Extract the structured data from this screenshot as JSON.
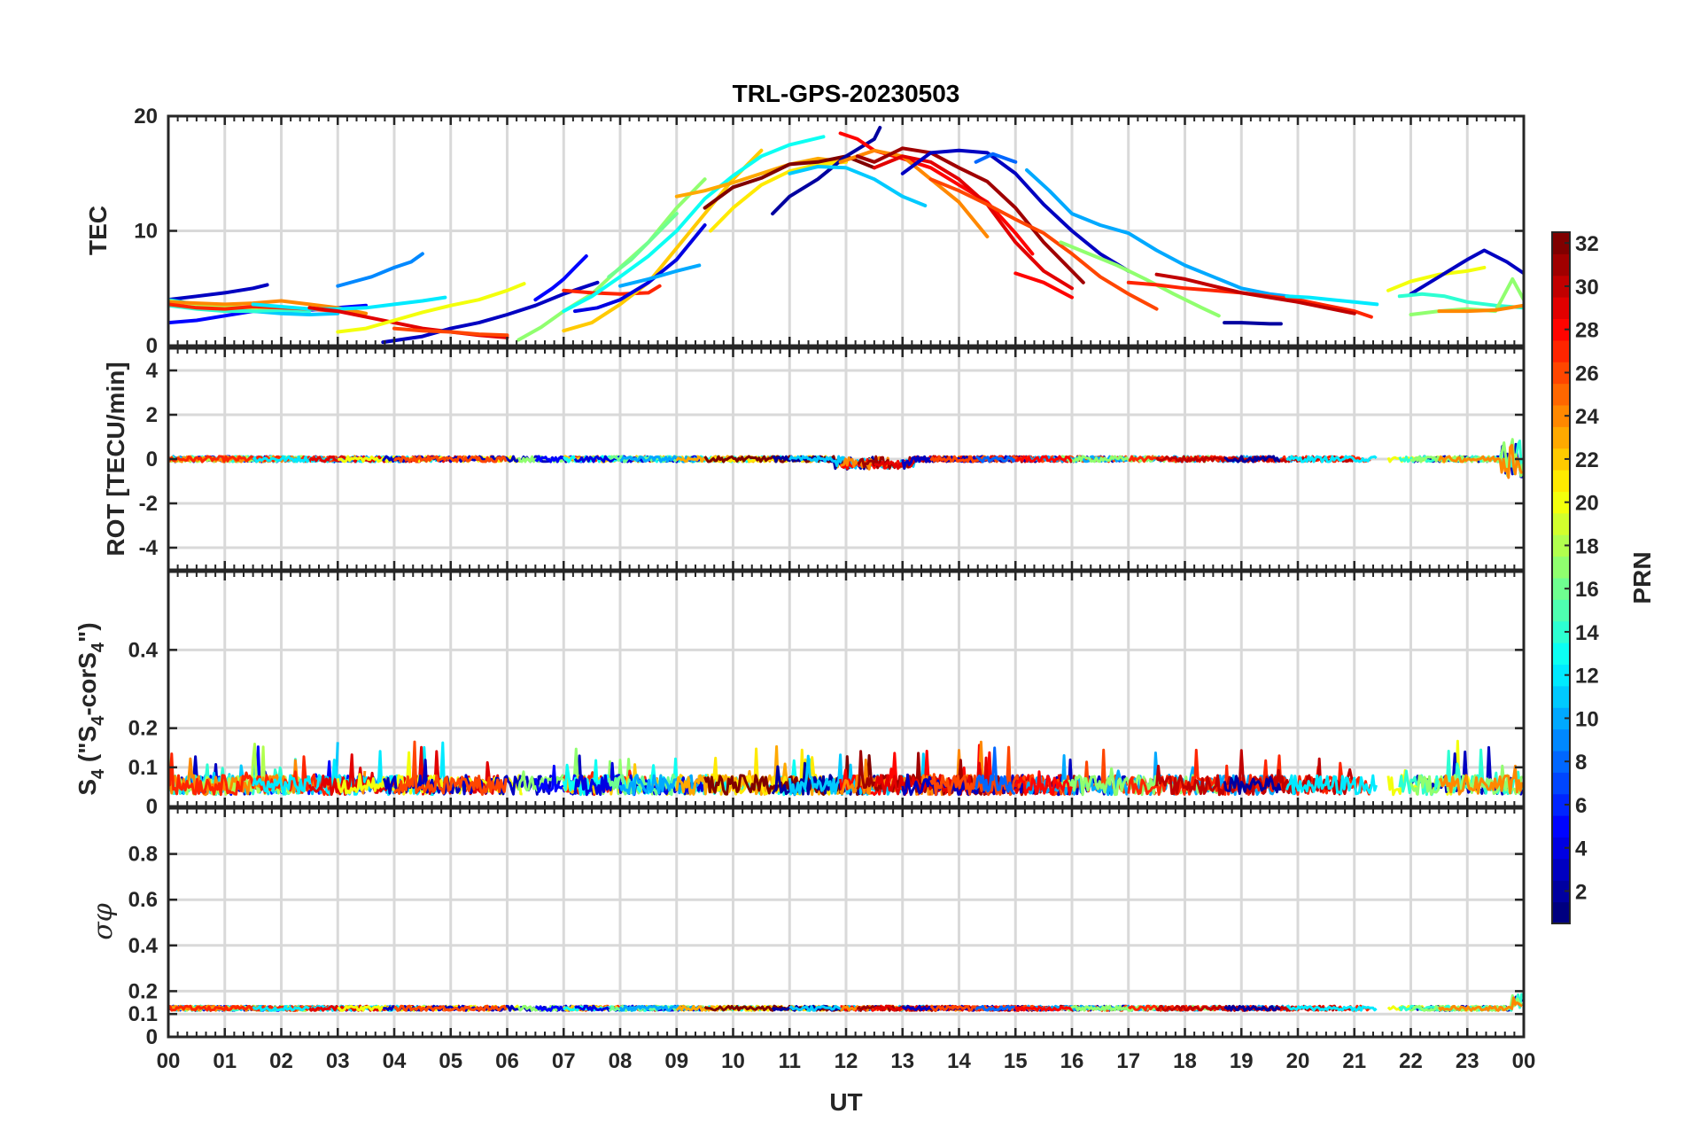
{
  "chart_data": {
    "type": "line",
    "title": "TRL-GPS-20230503",
    "xlabel": "UT",
    "x_unit": "hour",
    "xlim": [
      0,
      24
    ],
    "x_tick_labels": [
      "00",
      "01",
      "02",
      "03",
      "04",
      "05",
      "06",
      "07",
      "08",
      "09",
      "10",
      "11",
      "12",
      "13",
      "14",
      "15",
      "16",
      "17",
      "18",
      "19",
      "20",
      "21",
      "22",
      "23",
      "00"
    ],
    "colorbar": {
      "label": "PRN",
      "colormap": "jet",
      "range": [
        1,
        32
      ],
      "tick_labels": [
        "2",
        "4",
        "6",
        "8",
        "10",
        "12",
        "14",
        "16",
        "18",
        "20",
        "22",
        "24",
        "26",
        "28",
        "30",
        "32"
      ]
    },
    "grid": true,
    "panels": [
      {
        "ylabel": "TEC",
        "ylim": [
          0,
          20
        ],
        "y_ticks": [
          0,
          10,
          20
        ],
        "series": [
          {
            "prn": 3,
            "x": [
              0.0,
              0.5,
              1.0,
              1.5,
              1.75
            ],
            "y": [
              4.0,
              4.3,
              4.6,
              5.0,
              5.3
            ]
          },
          {
            "prn": 5,
            "x": [
              0.0,
              0.5,
              1.0,
              1.5,
              2.0,
              2.5,
              3.0,
              3.5
            ],
            "y": [
              2.0,
              2.2,
              2.6,
              3.0,
              3.0,
              3.1,
              3.3,
              3.5
            ]
          },
          {
            "prn": 11,
            "x": [
              0.0,
              0.5,
              1.0,
              1.5,
              2.0,
              2.5,
              3.0
            ],
            "y": [
              4.0,
              3.6,
              3.3,
              3.0,
              2.8,
              2.7,
              2.8
            ]
          },
          {
            "prn": 14,
            "x": [
              0.0,
              0.5,
              1.0,
              1.5,
              2.0,
              2.5
            ],
            "y": [
              3.5,
              3.2,
              3.0,
              3.0,
              3.1,
              3.0
            ]
          },
          {
            "prn": 18,
            "x": [
              0.0,
              0.5,
              1.0,
              1.5,
              2.0,
              2.5
            ],
            "y": [
              3.9,
              3.6,
              3.4,
              3.3,
              3.3,
              3.2
            ]
          },
          {
            "prn": 24,
            "x": [
              0.0,
              0.5,
              1.0,
              1.5,
              2.0,
              2.5,
              3.0,
              3.5
            ],
            "y": [
              3.8,
              3.7,
              3.6,
              3.7,
              3.9,
              3.6,
              3.3,
              2.8
            ]
          },
          {
            "prn": 27,
            "x": [
              0.0,
              0.5,
              1.0,
              1.5,
              2.0,
              2.5,
              3.0
            ],
            "y": [
              3.6,
              3.3,
              3.2,
              3.4,
              3.3,
              3.2,
              3.0
            ]
          },
          {
            "prn": 9,
            "x": [
              3.0,
              3.3,
              3.6,
              4.0,
              4.3,
              4.5
            ],
            "y": [
              5.2,
              5.6,
              6.0,
              6.8,
              7.3,
              8.0
            ]
          },
          {
            "prn": 12,
            "x": [
              1.5,
              2.0,
              2.5,
              3.0,
              3.5,
              4.0,
              4.5,
              4.9
            ],
            "y": [
              3.6,
              3.4,
              3.2,
              3.2,
              3.3,
              3.6,
              3.9,
              4.2
            ]
          },
          {
            "prn": 29,
            "x": [
              2.5,
              3.0,
              3.5,
              4.0,
              4.5,
              5.0,
              5.5,
              6.0
            ],
            "y": [
              3.3,
              3.0,
              2.5,
              2.0,
              1.5,
              1.2,
              0.9,
              0.7
            ]
          },
          {
            "prn": 20,
            "x": [
              3.0,
              3.5,
              4.0,
              4.5,
              5.0,
              5.5,
              6.0,
              6.3
            ],
            "y": [
              1.2,
              1.5,
              2.2,
              2.9,
              3.5,
              4.0,
              4.8,
              5.4
            ]
          },
          {
            "prn": 3,
            "x": [
              3.8,
              4.5,
              5.0,
              5.5,
              6.0,
              6.5,
              7.0,
              7.6
            ],
            "y": [
              0.3,
              0.8,
              1.5,
              2.0,
              2.7,
              3.5,
              4.5,
              5.5
            ]
          },
          {
            "prn": 26,
            "x": [
              4.0,
              4.5,
              5.0,
              5.5,
              6.0
            ],
            "y": [
              1.5,
              1.3,
              1.2,
              1.0,
              0.9
            ]
          },
          {
            "prn": 17,
            "x": [
              6.2,
              6.6,
              7.0,
              7.5,
              8.0,
              8.5,
              9.0,
              9.5
            ],
            "y": [
              0.5,
              1.6,
              3.0,
              4.5,
              6.8,
              9.0,
              12.0,
              14.5
            ]
          },
          {
            "prn": 5,
            "x": [
              6.5,
              6.8,
              7.0,
              7.2,
              7.4
            ],
            "y": [
              4.0,
              5.0,
              5.8,
              6.8,
              7.8
            ]
          },
          {
            "prn": 27,
            "x": [
              7.0,
              7.5,
              8.0,
              8.5,
              8.7
            ],
            "y": [
              4.8,
              4.6,
              4.5,
              4.6,
              5.2
            ]
          },
          {
            "prn": 22,
            "x": [
              7.0,
              7.5,
              8.0,
              8.5,
              9.0,
              9.5,
              10.0,
              10.5
            ],
            "y": [
              1.3,
              2.0,
              3.6,
              5.5,
              8.5,
              11.5,
              14.5,
              17.0
            ]
          },
          {
            "prn": 13,
            "x": [
              7.0,
              7.5,
              8.0,
              8.5,
              9.0,
              9.5,
              10.0,
              10.5,
              11.0,
              11.6
            ],
            "y": [
              3.0,
              4.3,
              6.0,
              7.8,
              10.0,
              12.8,
              14.8,
              16.5,
              17.5,
              18.2
            ]
          },
          {
            "prn": 4,
            "x": [
              7.2,
              7.6,
              8.0,
              8.5,
              9.0,
              9.5
            ],
            "y": [
              3.0,
              3.3,
              4.0,
              5.5,
              7.5,
              10.5
            ]
          },
          {
            "prn": 16,
            "x": [
              7.8,
              8.2,
              8.6,
              9.0
            ],
            "y": [
              6.0,
              7.5,
              9.5,
              11.5
            ]
          },
          {
            "prn": 10,
            "x": [
              8.0,
              8.5,
              9.0,
              9.4
            ],
            "y": [
              5.2,
              5.8,
              6.5,
              7.0
            ]
          },
          {
            "prn": 23,
            "x": [
              9.0,
              9.5,
              10.0,
              10.5,
              11.0,
              11.5,
              12.0
            ],
            "y": [
              13.0,
              13.5,
              14.2,
              15.0,
              15.8,
              16.3,
              16.0
            ]
          },
          {
            "prn": 21,
            "x": [
              9.6,
              10.0,
              10.5,
              11.0,
              11.5,
              12.0
            ],
            "y": [
              10.0,
              12.0,
              14.0,
              15.2,
              15.8,
              16.0
            ]
          },
          {
            "prn": 32,
            "x": [
              9.5,
              10.0,
              10.5,
              11.0,
              11.5,
              12.0,
              12.5
            ],
            "y": [
              12.0,
              13.8,
              14.6,
              15.8,
              16.0,
              16.5,
              15.5
            ]
          },
          {
            "prn": 2,
            "x": [
              10.7,
              11.0,
              11.5,
              12.0,
              12.5,
              12.6
            ],
            "y": [
              11.5,
              13.0,
              14.5,
              16.5,
              18.0,
              19.0
            ]
          },
          {
            "prn": 11,
            "x": [
              11.0,
              11.5,
              12.0,
              12.5,
              13.0,
              13.4
            ],
            "y": [
              15.0,
              15.6,
              15.5,
              14.5,
              13.0,
              12.2
            ]
          },
          {
            "prn": 28,
            "x": [
              11.9,
              12.2,
              12.5,
              13.0,
              13.5,
              14.0,
              14.5,
              15.0,
              15.3
            ],
            "y": [
              18.5,
              18.0,
              17.0,
              16.3,
              15.5,
              14.0,
              12.5,
              9.8,
              8.0
            ]
          },
          {
            "prn": 24,
            "x": [
              11.9,
              12.5,
              13.0,
              13.5,
              14.0,
              14.5
            ],
            "y": [
              16.0,
              17.0,
              16.5,
              14.5,
              12.5,
              9.5
            ]
          },
          {
            "prn": 31,
            "x": [
              12.2,
              12.5,
              13.0,
              13.5,
              14.0,
              14.5,
              15.0,
              15.5,
              16.2
            ],
            "y": [
              16.5,
              16.0,
              17.2,
              16.8,
              15.5,
              14.3,
              12.0,
              9.0,
              5.5
            ]
          },
          {
            "prn": 29,
            "x": [
              12.5,
              13.0,
              13.5,
              14.0,
              14.5,
              15.0,
              15.5,
              16.0
            ],
            "y": [
              15.5,
              16.5,
              16.0,
              14.5,
              12.3,
              9.0,
              6.5,
              5.0
            ]
          },
          {
            "prn": 3,
            "x": [
              13.0,
              13.5,
              14.0,
              14.5,
              15.0,
              15.5,
              16.0,
              16.5,
              17.0
            ],
            "y": [
              15.0,
              16.8,
              17.0,
              16.8,
              15.0,
              12.3,
              10.0,
              8.0,
              6.5
            ]
          },
          {
            "prn": 26,
            "x": [
              13.5,
              14.0,
              14.5,
              15.0,
              15.5,
              16.0,
              16.5,
              17.0,
              17.5
            ],
            "y": [
              14.5,
              13.5,
              12.3,
              11.0,
              9.8,
              8.0,
              6.0,
              4.5,
              3.2
            ]
          },
          {
            "prn": 8,
            "x": [
              14.3,
              14.6,
              15.0
            ],
            "y": [
              16.0,
              16.7,
              16.0
            ]
          },
          {
            "prn": 10,
            "x": [
              15.2,
              15.6,
              16.0,
              16.5,
              17.0,
              17.5,
              18.0,
              18.5,
              19.0,
              19.5,
              20.0
            ],
            "y": [
              15.3,
              13.5,
              11.5,
              10.5,
              9.8,
              8.3,
              7.0,
              6.0,
              5.0,
              4.5,
              4.2
            ]
          },
          {
            "prn": 17,
            "x": [
              15.8,
              16.3,
              16.8,
              17.3,
              17.8,
              18.3,
              18.6
            ],
            "y": [
              9.0,
              8.0,
              7.0,
              5.8,
              4.5,
              3.3,
              2.6
            ]
          },
          {
            "prn": 28,
            "x": [
              15.0,
              15.5,
              16.0
            ],
            "y": [
              6.3,
              5.5,
              4.2
            ]
          },
          {
            "prn": 27,
            "x": [
              17.0,
              17.5,
              18.0,
              18.5,
              19.0,
              19.5,
              20.0,
              20.5,
              21.0,
              21.3
            ],
            "y": [
              5.5,
              5.3,
              5.0,
              4.8,
              4.6,
              4.3,
              4.0,
              3.5,
              3.0,
              2.5
            ]
          },
          {
            "prn": 30,
            "x": [
              17.5,
              18.0,
              18.5,
              19.0,
              19.5,
              20.0,
              20.5,
              21.0
            ],
            "y": [
              6.2,
              5.8,
              5.2,
              4.6,
              4.2,
              3.8,
              3.3,
              2.8
            ]
          },
          {
            "prn": 2,
            "x": [
              18.7,
              19.0,
              19.5,
              19.7
            ],
            "y": [
              2.0,
              2.0,
              1.9,
              1.9
            ]
          },
          {
            "prn": 12,
            "x": [
              19.8,
              20.2,
              20.6,
              21.0,
              21.4
            ],
            "y": [
              4.3,
              4.2,
              4.0,
              3.8,
              3.6
            ]
          },
          {
            "prn": 20,
            "x": [
              21.6,
              22.0,
              22.5,
              23.0,
              23.3
            ],
            "y": [
              4.8,
              5.6,
              6.2,
              6.5,
              6.8
            ]
          },
          {
            "prn": 3,
            "x": [
              22.0,
              22.5,
              23.0,
              23.3,
              23.7,
              24.0
            ],
            "y": [
              4.5,
              6.0,
              7.5,
              8.3,
              7.3,
              6.3
            ]
          },
          {
            "prn": 14,
            "x": [
              21.8,
              22.2,
              22.6,
              23.0,
              23.5,
              24.0
            ],
            "y": [
              4.3,
              4.5,
              4.3,
              3.8,
              3.5,
              3.3
            ]
          },
          {
            "prn": 17,
            "x": [
              22.0,
              22.5,
              23.0,
              23.5,
              23.8,
              24.0
            ],
            "y": [
              2.7,
              3.0,
              3.2,
              3.0,
              5.8,
              4.0
            ]
          },
          {
            "prn": 24,
            "x": [
              22.5,
              23.0,
              23.5,
              24.0
            ],
            "y": [
              3.0,
              3.0,
              3.1,
              3.5
            ]
          }
        ]
      },
      {
        "ylabel": "ROT [TECU/min]",
        "ylim": [
          -5,
          5
        ],
        "y_ticks": [
          -4,
          -2,
          0,
          2,
          4
        ],
        "series_summary": "ROT values for all PRNs stay near 0 (within about ±0.5 TECU/min), with brief excursions near 12 UT (about -0.6) and near 23.8 UT (about +1 / -1)."
      },
      {
        "ylabel": "S4 (\"S4-corS4\")",
        "ylabel_parts": {
          "base": "S",
          "sub1": "4",
          "mid": " (\"S",
          "sub2": "4",
          "mid2": "-corS",
          "sub3": "4",
          "end": "\")"
        },
        "ylim": [
          0,
          0.6
        ],
        "y_ticks": [
          0,
          0.1,
          0.2,
          0.4
        ],
        "series_summary": "S4 values for all PRNs fluctuate mostly between 0.02 and 0.12, with occasional spikes up to about 0.2 (near 00 UT and 19.7 UT)."
      },
      {
        "ylabel": "σφ",
        "ylim": [
          0,
          1
        ],
        "y_ticks": [
          0,
          0.1,
          0.2,
          0.4,
          0.6,
          0.8
        ],
        "series_summary": "Phase scintillation index stays nearly flat around 0.10-0.15 for all PRNs all day, with a small rise near 24 UT."
      }
    ]
  }
}
